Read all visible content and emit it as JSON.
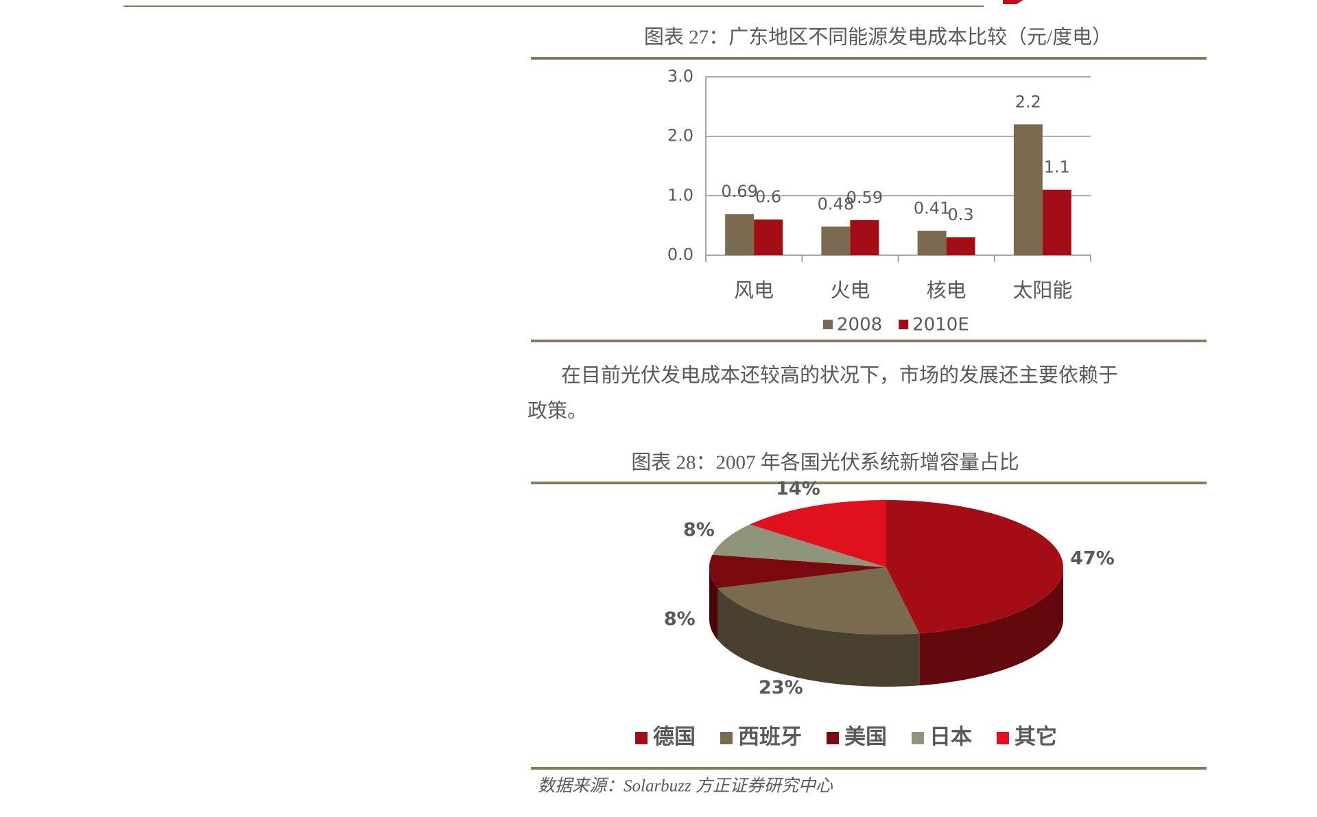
{
  "chart_data": [
    {
      "type": "bar",
      "title": "图表 27：广东地区不同能源发电成本比较（元/度电）",
      "categories": [
        "风电",
        "火电",
        "核电",
        "太阳能"
      ],
      "series": [
        {
          "name": "2008",
          "color": "#7a6a4f",
          "values": [
            0.69,
            0.48,
            0.41,
            2.2
          ]
        },
        {
          "name": "2010E",
          "color": "#a50d16",
          "values": [
            0.6,
            0.59,
            0.3,
            1.1
          ]
        }
      ],
      "ylim": [
        0,
        3
      ],
      "yticks": [
        {
          "value": 0,
          "label": "0.0"
        },
        {
          "value": 1,
          "label": "1.0"
        },
        {
          "value": 2,
          "label": "2.0"
        },
        {
          "value": 3,
          "label": "3.0"
        }
      ],
      "grid": true,
      "legend": "bottom"
    },
    {
      "type": "pie",
      "title": "图表 28：2007 年各国光伏系统新增容量占比",
      "categories": [
        "德国",
        "西班牙",
        "美国",
        "日本",
        "其它"
      ],
      "values": [
        47,
        23,
        8,
        8,
        14
      ],
      "value_labels": [
        "47%",
        "23%",
        "8%",
        "8%",
        "14%"
      ],
      "colors": [
        "#a50d16",
        "#7a6a4f",
        "#7b0a10",
        "#8f957a",
        "#e0101c"
      ],
      "legend": "bottom"
    }
  ],
  "document": {
    "paragraph_lines": [
      "在目前光伏发电成本还较高的状况下，市场的发展还主要依赖于",
      "政策。"
    ],
    "source": "数据来源：Solarbuzz  方正证券研究中心"
  }
}
